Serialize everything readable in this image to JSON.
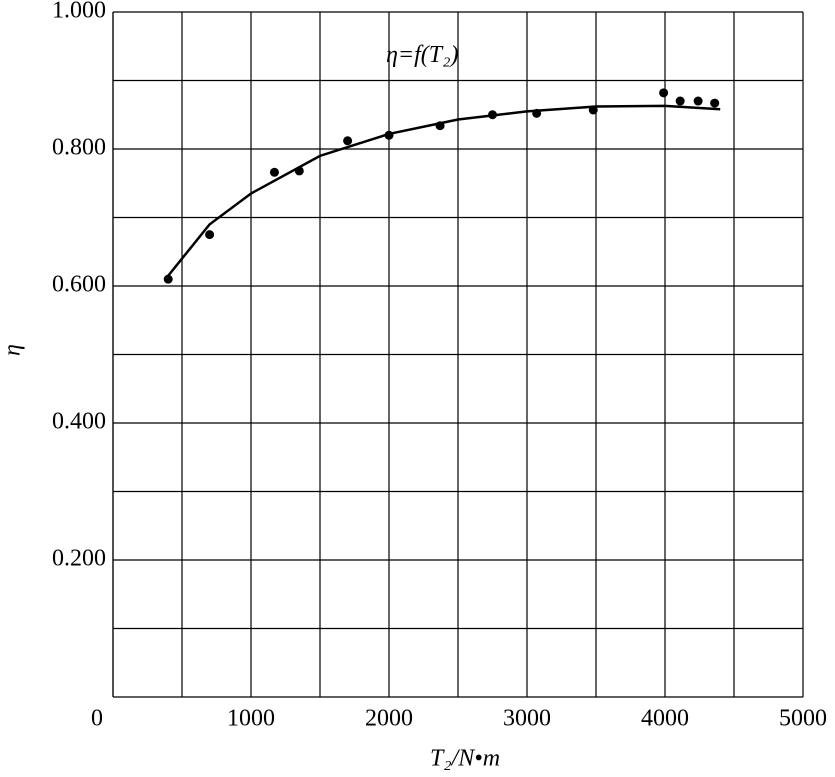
{
  "chart_data": {
    "type": "scatter",
    "xlabel": "T₂/N•m",
    "ylabel": "η",
    "xlim": [
      0,
      5000
    ],
    "ylim": [
      0,
      1
    ],
    "xticks": [
      0,
      1000,
      2000,
      3000,
      4000,
      5000
    ],
    "yticks": [
      {
        "value": 0.2,
        "label": "0.200"
      },
      {
        "value": 0.4,
        "label": "0.400"
      },
      {
        "value": 0.6,
        "label": "0.600"
      },
      {
        "value": 0.8,
        "label": "0.800"
      },
      {
        "value": 1.0,
        "label": "1.000"
      }
    ],
    "xminor": [
      500,
      1500,
      2500,
      3500,
      4500
    ],
    "yminor": [
      0.1,
      0.3,
      0.5,
      0.7,
      0.9
    ],
    "grid": true,
    "series": [
      {
        "color": "#000000",
        "kind": "points",
        "x": [
          400,
          700,
          1170,
          1350,
          1700,
          2000,
          2370,
          2750,
          3070,
          3480,
          3990,
          4110,
          4240,
          4360
        ],
        "values": [
          0.61,
          0.675,
          0.766,
          0.768,
          0.812,
          0.82,
          0.834,
          0.85,
          0.852,
          0.857,
          0.882,
          0.87,
          0.87,
          0.867
        ]
      },
      {
        "name": "η=f(T₂)",
        "color": "#000000",
        "kind": "line",
        "x": [
          400,
          700,
          1000,
          1500,
          2000,
          2500,
          3000,
          3500,
          4000,
          4400
        ],
        "values": [
          0.615,
          0.69,
          0.735,
          0.79,
          0.822,
          0.843,
          0.855,
          0.862,
          0.863,
          0.858
        ]
      }
    ]
  }
}
